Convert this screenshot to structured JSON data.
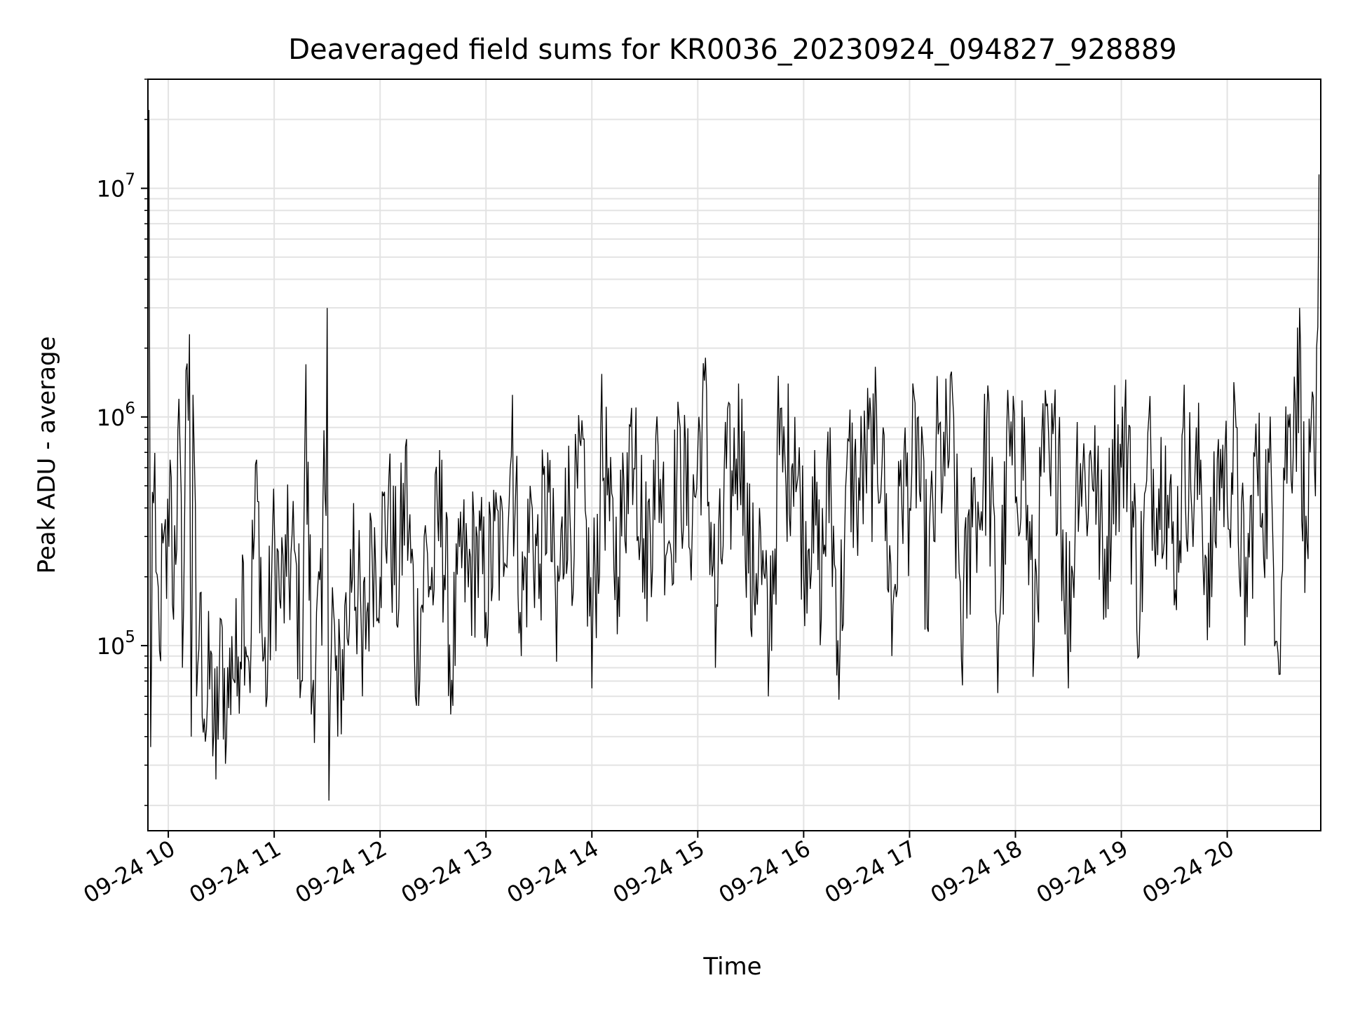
{
  "chart_data": {
    "type": "line",
    "title": "Deaveraged field sums for KR0036_20230924_094827_928889",
    "xlabel": "Time",
    "ylabel": "Peak ADU - average",
    "y_scale": "log",
    "ylim": [
      15500,
      30000000
    ],
    "xlim": [
      "2023-09-24T09:48:27",
      "2023-09-24T20:53:00"
    ],
    "grid": true,
    "legend": "none",
    "line_color": "#000000",
    "x_ticks": [
      {
        "label": "09-24 10",
        "time": "2023-09-24T10:00"
      },
      {
        "label": "09-24 11",
        "time": "2023-09-24T11:00"
      },
      {
        "label": "09-24 12",
        "time": "2023-09-24T12:00"
      },
      {
        "label": "09-24 13",
        "time": "2023-09-24T13:00"
      },
      {
        "label": "09-24 14",
        "time": "2023-09-24T14:00"
      },
      {
        "label": "09-24 15",
        "time": "2023-09-24T15:00"
      },
      {
        "label": "09-24 16",
        "time": "2023-09-24T16:00"
      },
      {
        "label": "09-24 17",
        "time": "2023-09-24T17:00"
      },
      {
        "label": "09-24 18",
        "time": "2023-09-24T18:00"
      },
      {
        "label": "09-24 19",
        "time": "2023-09-24T19:00"
      },
      {
        "label": "09-24 20",
        "time": "2023-09-24T20:00"
      }
    ],
    "y_ticks": [
      {
        "base": "10",
        "exp": "5",
        "value": 100000
      },
      {
        "base": "10",
        "exp": "6",
        "value": 1000000
      },
      {
        "base": "10",
        "exp": "7",
        "value": 10000000
      }
    ],
    "series": [
      {
        "x": [
          "2023-09-24T09:49",
          "2023-09-24T09:50",
          "2023-09-24T09:51",
          "2023-09-24T09:53",
          "2023-09-24T09:55",
          "2023-09-24T09:57",
          "2023-09-24T09:59",
          "2023-09-24T10:01",
          "2023-09-24T10:03",
          "2023-09-24T10:06",
          "2023-09-24T10:08",
          "2023-09-24T10:10",
          "2023-09-24T10:12",
          "2023-09-24T10:13",
          "2023-09-24T10:14",
          "2023-09-24T10:16",
          "2023-09-24T10:18",
          "2023-09-24T10:21",
          "2023-09-24T10:24",
          "2023-09-24T10:27",
          "2023-09-24T10:30",
          "2023-09-24T10:33",
          "2023-09-24T10:36",
          "2023-09-24T10:39",
          "2023-09-24T10:42",
          "2023-09-24T10:45",
          "2023-09-24T10:47",
          "2023-09-24T10:50",
          "2023-09-24T10:53",
          "2023-09-24T10:56",
          "2023-09-24T10:59",
          "2023-09-24T11:03",
          "2023-09-24T11:07",
          "2023-09-24T11:12",
          "2023-09-24T11:16",
          "2023-09-24T11:18",
          "2023-09-24T11:21",
          "2023-09-24T11:24",
          "2023-09-24T11:27",
          "2023-09-24T11:30",
          "2023-09-24T11:31",
          "2023-09-24T11:33",
          "2023-09-24T11:36",
          "2023-09-24T11:40",
          "2023-09-24T11:42",
          "2023-09-24T11:45",
          "2023-09-24T11:50",
          "2023-09-24T11:55",
          "2023-09-24T12:00",
          "2023-09-24T12:05",
          "2023-09-24T12:10",
          "2023-09-24T12:15",
          "2023-09-24T12:20",
          "2023-09-24T12:25",
          "2023-09-24T12:30",
          "2023-09-24T12:35",
          "2023-09-24T12:40",
          "2023-09-24T12:45",
          "2023-09-24T12:50",
          "2023-09-24T12:55",
          "2023-09-24T13:00",
          "2023-09-24T13:05",
          "2023-09-24T13:10",
          "2023-09-24T13:15",
          "2023-09-24T13:20",
          "2023-09-24T13:25",
          "2023-09-24T13:30",
          "2023-09-24T13:35",
          "2023-09-24T13:40",
          "2023-09-24T13:45",
          "2023-09-24T13:50",
          "2023-09-24T13:55",
          "2023-09-24T14:00",
          "2023-09-24T14:05",
          "2023-09-24T14:10",
          "2023-09-24T14:15",
          "2023-09-24T14:20",
          "2023-09-24T14:25",
          "2023-09-24T14:30",
          "2023-09-24T14:35",
          "2023-09-24T14:40",
          "2023-09-24T14:45",
          "2023-09-24T14:50",
          "2023-09-24T14:55",
          "2023-09-24T15:00",
          "2023-09-24T15:05",
          "2023-09-24T15:10",
          "2023-09-24T15:15",
          "2023-09-24T15:20",
          "2023-09-24T15:25",
          "2023-09-24T15:30",
          "2023-09-24T15:35",
          "2023-09-24T15:40",
          "2023-09-24T15:45",
          "2023-09-24T15:50",
          "2023-09-24T15:55",
          "2023-09-24T16:00",
          "2023-09-24T16:05",
          "2023-09-24T16:10",
          "2023-09-24T16:15",
          "2023-09-24T16:20",
          "2023-09-24T16:25",
          "2023-09-24T16:30",
          "2023-09-24T16:35",
          "2023-09-24T16:40",
          "2023-09-24T16:45",
          "2023-09-24T16:50",
          "2023-09-24T16:55",
          "2023-09-24T17:00",
          "2023-09-24T17:05",
          "2023-09-24T17:10",
          "2023-09-24T17:15",
          "2023-09-24T17:20",
          "2023-09-24T17:25",
          "2023-09-24T17:30",
          "2023-09-24T17:35",
          "2023-09-24T17:40",
          "2023-09-24T17:45",
          "2023-09-24T17:50",
          "2023-09-24T17:55",
          "2023-09-24T18:00",
          "2023-09-24T18:05",
          "2023-09-24T18:10",
          "2023-09-24T18:15",
          "2023-09-24T18:20",
          "2023-09-24T18:25",
          "2023-09-24T18:30",
          "2023-09-24T18:35",
          "2023-09-24T18:40",
          "2023-09-24T18:45",
          "2023-09-24T18:50",
          "2023-09-24T18:55",
          "2023-09-24T19:00",
          "2023-09-24T19:05",
          "2023-09-24T19:10",
          "2023-09-24T19:15",
          "2023-09-24T19:20",
          "2023-09-24T19:25",
          "2023-09-24T19:30",
          "2023-09-24T19:35",
          "2023-09-24T19:40",
          "2023-09-24T19:45",
          "2023-09-24T19:50",
          "2023-09-24T19:55",
          "2023-09-24T20:00",
          "2023-09-24T20:05",
          "2023-09-24T20:10",
          "2023-09-24T20:15",
          "2023-09-24T20:20",
          "2023-09-24T20:25",
          "2023-09-24T20:30",
          "2023-09-24T20:32",
          "2023-09-24T20:35",
          "2023-09-24T20:38",
          "2023-09-24T20:41",
          "2023-09-24T20:44",
          "2023-09-24T20:47",
          "2023-09-24T20:50",
          "2023-09-24T20:52"
        ],
        "y": [
          22000000,
          36000,
          470000,
          210000,
          95000,
          280000,
          160000,
          650000,
          130000,
          1200000,
          80000,
          1600000,
          2300000,
          40000,
          1250000,
          60000,
          170000,
          38000,
          95000,
          26000,
          130000,
          40000,
          110000,
          60000,
          250000,
          90000,
          110000,
          650000,
          120000,
          60000,
          300000,
          160000,
          200000,
          250000,
          70000,
          1700000,
          50000,
          140000,
          100000,
          3000000,
          21000,
          180000,
          40000,
          150000,
          100000,
          420000,
          60000,
          350000,
          200000,
          550000,
          120000,
          800000,
          60000,
          300000,
          150000,
          650000,
          50000,
          270000,
          180000,
          300000,
          140000,
          350000,
          200000,
          1250000,
          90000,
          500000,
          160000,
          700000,
          85000,
          600000,
          250000,
          800000,
          65000,
          900000,
          350000,
          200000,
          700000,
          1100000,
          160000,
          650000,
          500000,
          250000,
          900000,
          270000,
          700000,
          1300000,
          80000,
          600000,
          450000,
          1200000,
          120000,
          400000,
          60000,
          800000,
          500000,
          1000000,
          200000,
          550000,
          130000,
          900000,
          58000,
          800000,
          380000,
          700000,
          620000,
          900000,
          90000,
          650000,
          400000,
          1000000,
          120000,
          750000,
          550000,
          1000000,
          67000,
          600000,
          320000,
          1150000,
          62000,
          850000,
          420000,
          1000000,
          73000,
          850000,
          450000,
          1000000,
          65000,
          950000,
          400000,
          920000,
          130000,
          800000,
          600000,
          900000,
          90000,
          850000,
          400000,
          750000,
          150000,
          900000,
          380000,
          650000,
          120000,
          800000,
          420000,
          900000,
          100000,
          700000,
          380000,
          550000,
          75000,
          600000,
          900000,
          1500000,
          3000000,
          170000,
          700000,
          450000,
          11500000
        ]
      }
    ]
  }
}
